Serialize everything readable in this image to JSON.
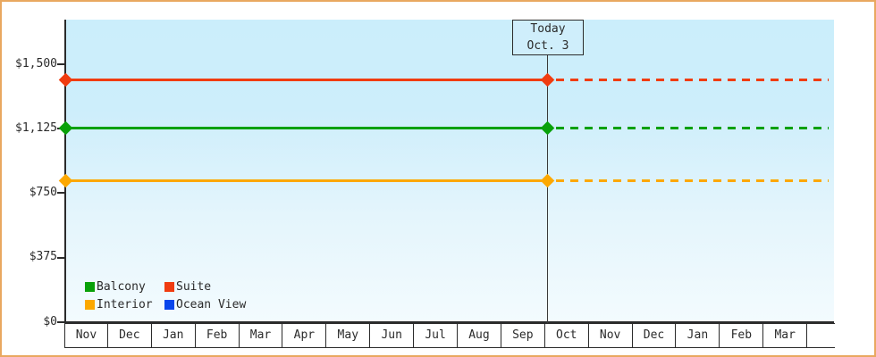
{
  "chart_data": {
    "type": "line",
    "title": "",
    "xlabel": "",
    "ylabel": "",
    "ylim": [
      0,
      1500
    ],
    "grid": false,
    "legend_position": "bottom-left",
    "x_categories": [
      "Nov",
      "Dec",
      "Jan",
      "Feb",
      "Mar",
      "Apr",
      "May",
      "Jun",
      "Jul",
      "Aug",
      "Sep",
      "Oct",
      "Nov",
      "Dec",
      "Jan",
      "Feb",
      "Mar"
    ],
    "y_ticks": [
      "$1,500",
      "$1,125",
      "$750",
      "$375",
      "$0"
    ],
    "y_tick_values": [
      1500,
      1125,
      750,
      375,
      0
    ],
    "annotation": {
      "line1": "Today",
      "line2": "Oct. 3"
    },
    "series": [
      {
        "name": "Suite",
        "color": "#f03c10",
        "value": 1405,
        "shape": "flat horizontal line, solid before today, dashed projection after today"
      },
      {
        "name": "Balcony",
        "color": "#09a109",
        "value": 1125,
        "shape": "flat horizontal line, solid before today, dashed projection after today"
      },
      {
        "name": "Interior",
        "color": "#fca800",
        "value": 820,
        "shape": "flat horizontal line, solid before today, dashed projection after today"
      },
      {
        "name": "Ocean View",
        "color": "#0946ec",
        "value": null,
        "shape": "no line plotted (legend entry only)"
      }
    ]
  },
  "legend": {
    "items": [
      {
        "label": "Balcony",
        "color": "#09a109"
      },
      {
        "label": "Suite",
        "color": "#f03c10"
      },
      {
        "label": "Interior",
        "color": "#fca800"
      },
      {
        "label": "Ocean View",
        "color": "#0946ec"
      }
    ]
  },
  "frame": {
    "border_color": "#e9a860",
    "plot_bg_top": "#cbeefb",
    "plot_bg_bottom": "#f3fbfe"
  }
}
